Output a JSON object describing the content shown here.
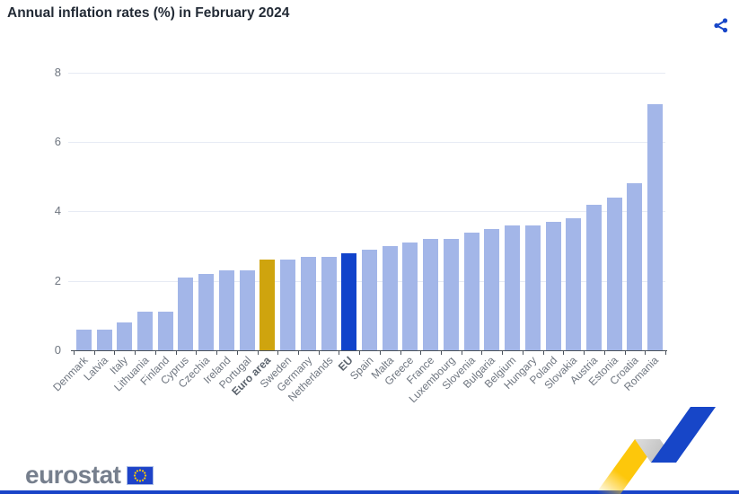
{
  "header": {
    "title": "Annual inflation rates (%) in February 2024"
  },
  "chart_data": {
    "type": "bar",
    "title": "Annual inflation rates (%) in February 2024",
    "categories": [
      "Denmark",
      "Latvia",
      "Italy",
      "Lithuania",
      "Finland",
      "Cyprus",
      "Czechia",
      "Ireland",
      "Portugal",
      "Euro area",
      "Sweden",
      "Germany",
      "Netherlands",
      "EU",
      "Spain",
      "Malta",
      "Greece",
      "France",
      "Luxembourg",
      "Slovenia",
      "Bulgaria",
      "Belgium",
      "Hungary",
      "Poland",
      "Slovakia",
      "Austria",
      "Estonia",
      "Croatia",
      "Romania"
    ],
    "values": [
      0.6,
      0.6,
      0.8,
      1.1,
      1.1,
      2.1,
      2.2,
      2.3,
      2.3,
      2.6,
      2.6,
      2.7,
      2.7,
      2.8,
      2.9,
      3.0,
      3.1,
      3.2,
      3.2,
      3.4,
      3.5,
      3.6,
      3.6,
      3.7,
      3.8,
      4.2,
      4.4,
      4.8,
      7.1
    ],
    "emphasized_categories": [
      "Euro area",
      "EU"
    ],
    "bar_colors": {
      "default": "#a3b6e8",
      "Euro area": "#cfa40e",
      "EU": "#1143cb"
    },
    "xlabel": "",
    "ylabel": "",
    "ylim": [
      0,
      8
    ],
    "yticks": [
      0,
      2,
      4,
      6,
      8
    ],
    "grid": "horizontal",
    "legend": "none"
  },
  "colors": {
    "share_icon": "#1746c8",
    "title_text": "#232b36",
    "axis_text": "#6f7680",
    "bottom_strip": "#1a44c8",
    "decoration_yellow": "#fdc70b",
    "decoration_gray": "#c6c6c6",
    "decoration_blue": "#1746c8",
    "flag_blue": "#1e43c8",
    "flag_stars": "#ffcc00"
  },
  "footer": {
    "logo_text": "eurostat"
  }
}
